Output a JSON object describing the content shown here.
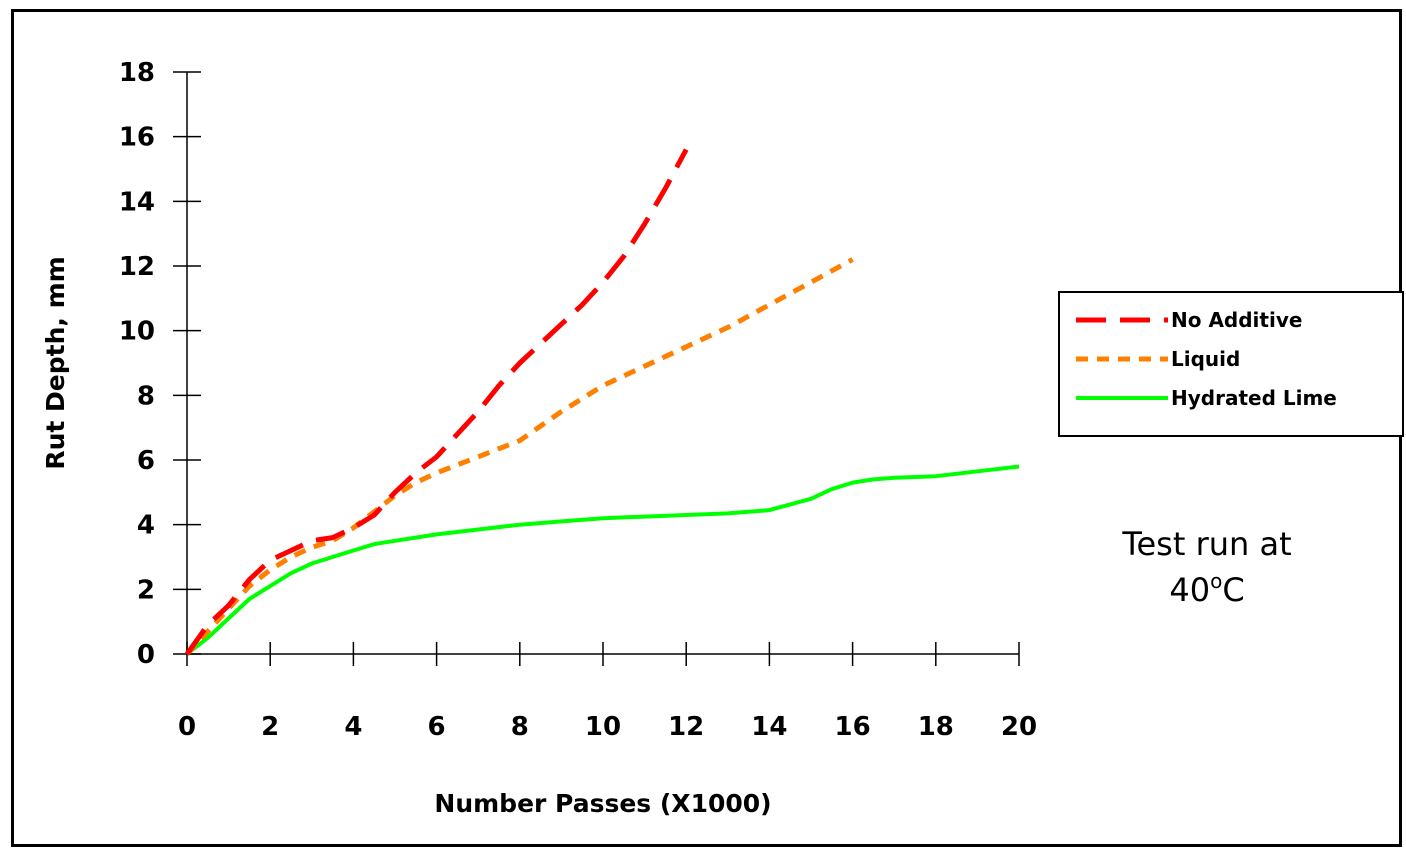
{
  "chart_data": {
    "type": "line",
    "title": "",
    "xlabel": "Number Passes (X1000)",
    "ylabel": "Rut Depth, mm",
    "xlim": [
      0,
      20
    ],
    "ylim": [
      0,
      18
    ],
    "xticks": [
      "0",
      "2",
      "4",
      "6",
      "8",
      "10",
      "12",
      "14",
      "16",
      "18",
      "20"
    ],
    "yticks": [
      "0",
      "2",
      "4",
      "6",
      "8",
      "10",
      "12",
      "14",
      "16",
      "18"
    ],
    "grid": false,
    "legend_position": "right",
    "series": [
      {
        "name": "No Additive",
        "color": "#ff0000",
        "style": "dashed",
        "x": [
          0,
          0.5,
          1,
          1.5,
          2,
          2.5,
          3,
          3.5,
          4,
          4.5,
          5,
          5.5,
          6,
          6.5,
          7,
          7.5,
          8,
          8.5,
          9,
          9.5,
          10,
          10.5,
          11,
          11.5,
          12
        ],
        "y": [
          0,
          0.9,
          1.5,
          2.3,
          2.9,
          3.2,
          3.5,
          3.6,
          3.9,
          4.3,
          5.0,
          5.6,
          6.1,
          6.8,
          7.5,
          8.3,
          9.0,
          9.6,
          10.2,
          10.8,
          11.5,
          12.3,
          13.3,
          14.4,
          15.6
        ]
      },
      {
        "name": "Liquid",
        "color": "#ff8000",
        "style": "dotted",
        "x": [
          0,
          0.5,
          1,
          1.5,
          2,
          2.5,
          3,
          3.5,
          4,
          4.5,
          5,
          5.5,
          6,
          7,
          8,
          9,
          10,
          11,
          12,
          13,
          14,
          15,
          16
        ],
        "y": [
          0,
          0.7,
          1.4,
          2.1,
          2.6,
          3.0,
          3.3,
          3.5,
          3.9,
          4.4,
          4.9,
          5.3,
          5.6,
          6.1,
          6.6,
          7.5,
          8.3,
          8.9,
          9.5,
          10.1,
          10.8,
          11.5,
          12.2
        ]
      },
      {
        "name": "Hydrated Lime",
        "color": "#00ff00",
        "style": "solid",
        "x": [
          0,
          0.5,
          1,
          1.5,
          2,
          2.5,
          3,
          3.5,
          4,
          4.5,
          5,
          5.5,
          6,
          7,
          8,
          9,
          10,
          11,
          12,
          13,
          14,
          15,
          15.5,
          16,
          16.5,
          17,
          18,
          19,
          20
        ],
        "y": [
          0,
          0.5,
          1.1,
          1.7,
          2.1,
          2.5,
          2.8,
          3.0,
          3.2,
          3.4,
          3.5,
          3.6,
          3.7,
          3.85,
          4.0,
          4.1,
          4.2,
          4.25,
          4.3,
          4.35,
          4.45,
          4.8,
          5.1,
          5.3,
          5.4,
          5.45,
          5.5,
          5.65,
          5.8
        ]
      }
    ],
    "annotation": {
      "line1": "Test run at",
      "line2_value": "40",
      "line2_superscript": "o",
      "line2_unit": "C"
    }
  }
}
